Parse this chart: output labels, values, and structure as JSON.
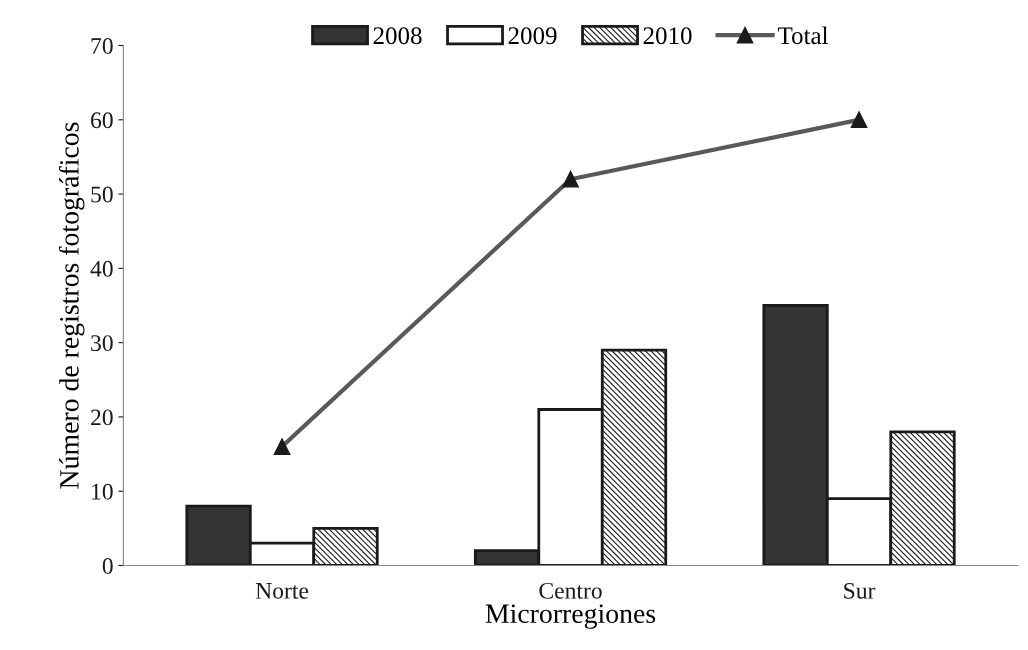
{
  "chart_data": {
    "type": "bar",
    "xlabel": "Microrregiones",
    "ylabel": "Número de registros fotográficos",
    "categories": [
      "Norte",
      "Centro",
      "Sur"
    ],
    "series": [
      {
        "name": "2008",
        "color": "#333333",
        "values": [
          8,
          2,
          35
        ]
      },
      {
        "name": "2009",
        "color": "#ffffff",
        "values": [
          3,
          21,
          9
        ]
      },
      {
        "name": "2010",
        "color": "#1a1a1a",
        "values": [
          5,
          29,
          18
        ]
      },
      {
        "name": "Total",
        "type": "line",
        "color": "#595959",
        "marker": "triangle",
        "values": [
          16,
          52,
          60
        ]
      }
    ],
    "ylim": [
      0,
      70
    ],
    "yticks": [
      0,
      10,
      20,
      30,
      40,
      50,
      60,
      70
    ],
    "grid": false,
    "legend": "top"
  }
}
